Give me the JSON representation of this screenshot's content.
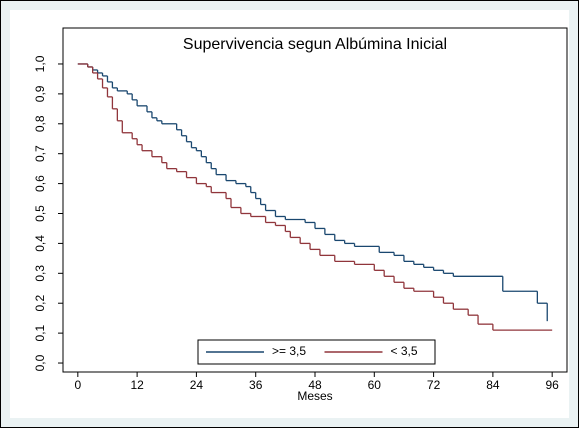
{
  "chart_data": {
    "type": "step",
    "title": "Supervivencia segun Albúmina Inicial",
    "xlabel": "Meses",
    "xlim": [
      -3,
      99
    ],
    "xticks": [
      0,
      12,
      24,
      36,
      48,
      60,
      72,
      84,
      96
    ],
    "ylim": [
      -0.03,
      1.03
    ],
    "yticks": [
      {
        "value": 0,
        "label": "0,0"
      },
      {
        "value": 0.1,
        "label": "0,1"
      },
      {
        "value": 0.2,
        "label": "0,2"
      },
      {
        "value": 0.3,
        "label": "0,3"
      },
      {
        "value": 0.4,
        "label": "0,4"
      },
      {
        "value": 0.5,
        "label": "0,5"
      },
      {
        "value": 0.6,
        "label": "0,6"
      },
      {
        "value": 0.7,
        "label": "0,7"
      },
      {
        "value": 0.8,
        "label": "0,8"
      },
      {
        "value": 0.9,
        "label": "0,9"
      },
      {
        "value": 1.0,
        "label": "1,0"
      }
    ],
    "legend_position": "bottom",
    "series": [
      {
        "name": ">= 3,5",
        "color": "#1a476f",
        "x": [
          0,
          2,
          3,
          4,
          5,
          6,
          7,
          8,
          10,
          11,
          12,
          14,
          15,
          16,
          17,
          20,
          21,
          22,
          23,
          24,
          25,
          26,
          27,
          28,
          30,
          32,
          34,
          35,
          36,
          37,
          38,
          40,
          42,
          46,
          48,
          50,
          52,
          54,
          56,
          61,
          64,
          66,
          68,
          70,
          72,
          74,
          76,
          86,
          93,
          95
        ],
        "values": [
          1.0,
          0.99,
          0.98,
          0.97,
          0.96,
          0.94,
          0.92,
          0.91,
          0.9,
          0.88,
          0.86,
          0.84,
          0.82,
          0.81,
          0.8,
          0.78,
          0.76,
          0.74,
          0.72,
          0.71,
          0.69,
          0.67,
          0.65,
          0.63,
          0.61,
          0.6,
          0.59,
          0.57,
          0.55,
          0.53,
          0.51,
          0.49,
          0.48,
          0.47,
          0.45,
          0.43,
          0.41,
          0.4,
          0.39,
          0.37,
          0.36,
          0.34,
          0.33,
          0.32,
          0.31,
          0.3,
          0.29,
          0.24,
          0.2,
          0.14
        ]
      },
      {
        "name": "< 3,5",
        "color": "#90353b",
        "x": [
          0,
          2,
          3,
          4,
          5,
          6,
          7,
          8,
          9,
          11,
          12,
          13,
          15,
          17,
          18,
          20,
          22,
          24,
          26,
          27,
          30,
          31,
          33,
          35,
          38,
          40,
          42,
          43,
          45,
          47,
          49,
          52,
          56,
          60,
          62,
          64,
          66,
          68,
          72,
          74,
          76,
          79,
          81,
          84,
          96
        ],
        "values": [
          1.0,
          0.99,
          0.97,
          0.95,
          0.92,
          0.89,
          0.85,
          0.81,
          0.77,
          0.75,
          0.73,
          0.71,
          0.69,
          0.67,
          0.65,
          0.64,
          0.62,
          0.6,
          0.59,
          0.57,
          0.55,
          0.52,
          0.5,
          0.49,
          0.47,
          0.46,
          0.44,
          0.42,
          0.4,
          0.38,
          0.36,
          0.34,
          0.33,
          0.31,
          0.29,
          0.27,
          0.25,
          0.24,
          0.22,
          0.2,
          0.18,
          0.16,
          0.13,
          0.11,
          0.11
        ]
      }
    ]
  }
}
